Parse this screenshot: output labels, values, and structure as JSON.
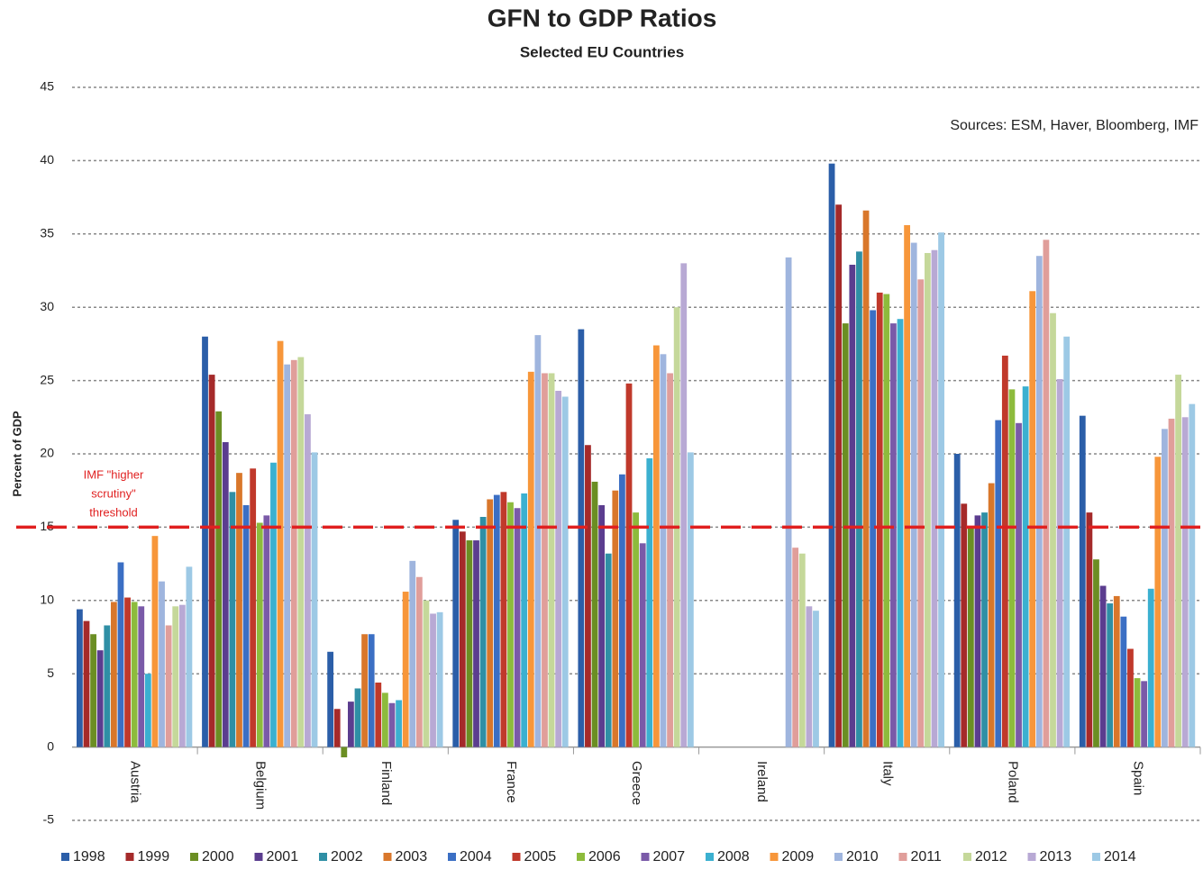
{
  "chart_data": {
    "type": "bar",
    "title": "GFN to GDP Ratios",
    "subtitle": "Selected EU Countries",
    "y_label": "Percent of GDP",
    "source": "Sources: ESM, Haver, Bloomberg, IMF",
    "categories": [
      "Austria",
      "Belgium",
      "Finland",
      "France",
      "Greece",
      "Ireland",
      "Italy",
      "Poland",
      "Spain"
    ],
    "series": [
      {
        "name": "1998",
        "color": "#2b5ea8",
        "values": [
          9.4,
          28.0,
          6.5,
          15.5,
          28.5,
          null,
          39.8,
          20.0,
          22.6
        ]
      },
      {
        "name": "1999",
        "color": "#a52a2a",
        "values": [
          8.6,
          25.4,
          2.6,
          14.7,
          20.6,
          null,
          37.0,
          16.6,
          16.0
        ]
      },
      {
        "name": "2000",
        "color": "#6b8e23",
        "values": [
          7.7,
          22.9,
          -0.7,
          14.1,
          18.1,
          null,
          28.9,
          15.0,
          12.8
        ]
      },
      {
        "name": "2001",
        "color": "#5b3d8f",
        "values": [
          6.6,
          20.8,
          3.1,
          14.1,
          16.5,
          null,
          32.9,
          15.8,
          11.0
        ]
      },
      {
        "name": "2002",
        "color": "#2f8fa5",
        "values": [
          8.3,
          17.4,
          4.0,
          15.7,
          13.2,
          null,
          33.8,
          16.0,
          9.8
        ]
      },
      {
        "name": "2003",
        "color": "#d9772b",
        "values": [
          9.9,
          18.7,
          7.7,
          16.9,
          17.5,
          null,
          36.6,
          18.0,
          10.3
        ]
      },
      {
        "name": "2004",
        "color": "#3b6fc4",
        "values": [
          12.6,
          16.5,
          7.7,
          17.2,
          18.6,
          null,
          29.8,
          22.3,
          8.9
        ]
      },
      {
        "name": "2005",
        "color": "#c0392b",
        "values": [
          10.2,
          19.0,
          4.4,
          17.4,
          24.8,
          null,
          31.0,
          26.7,
          6.7
        ]
      },
      {
        "name": "2006",
        "color": "#8dbb3c",
        "values": [
          9.9,
          15.3,
          3.7,
          16.7,
          16.0,
          null,
          30.9,
          24.4,
          4.7
        ]
      },
      {
        "name": "2007",
        "color": "#7a5aa8",
        "values": [
          9.6,
          15.8,
          3.0,
          16.3,
          13.9,
          null,
          28.9,
          22.1,
          4.5
        ]
      },
      {
        "name": "2008",
        "color": "#3bb0d0",
        "values": [
          5.0,
          19.4,
          3.2,
          17.3,
          19.7,
          null,
          29.2,
          24.6,
          10.8
        ]
      },
      {
        "name": "2009",
        "color": "#f7963a",
        "values": [
          14.4,
          27.7,
          10.6,
          25.6,
          27.4,
          null,
          35.6,
          31.1,
          19.8
        ]
      },
      {
        "name": "2010",
        "color": "#9fb5de",
        "values": [
          11.3,
          26.1,
          12.7,
          28.1,
          26.8,
          33.4,
          34.4,
          33.5,
          21.7
        ]
      },
      {
        "name": "2011",
        "color": "#e09e9a",
        "values": [
          8.3,
          26.4,
          11.6,
          25.5,
          25.5,
          13.6,
          31.9,
          34.6,
          22.4
        ]
      },
      {
        "name": "2012",
        "color": "#c5d89a",
        "values": [
          9.6,
          26.6,
          10.0,
          25.5,
          30.0,
          13.2,
          33.7,
          29.6,
          25.4
        ]
      },
      {
        "name": "2013",
        "color": "#b8a9d4",
        "values": [
          9.7,
          22.7,
          9.1,
          24.3,
          33.0,
          9.6,
          33.9,
          25.1,
          22.5
        ]
      },
      {
        "name": "2014",
        "color": "#9dc9e5",
        "values": [
          12.3,
          20.1,
          9.2,
          23.9,
          20.1,
          9.3,
          35.1,
          28.0,
          23.4
        ]
      }
    ],
    "threshold": {
      "value": 15,
      "color": "#e02020",
      "label": [
        "IMF \"higher",
        "scrutiny\"",
        "threshold"
      ]
    },
    "ylim": [
      -5,
      45
    ],
    "yticks": [
      -5,
      0,
      5,
      10,
      15,
      20,
      25,
      30,
      35,
      40,
      45
    ],
    "grid": true
  }
}
